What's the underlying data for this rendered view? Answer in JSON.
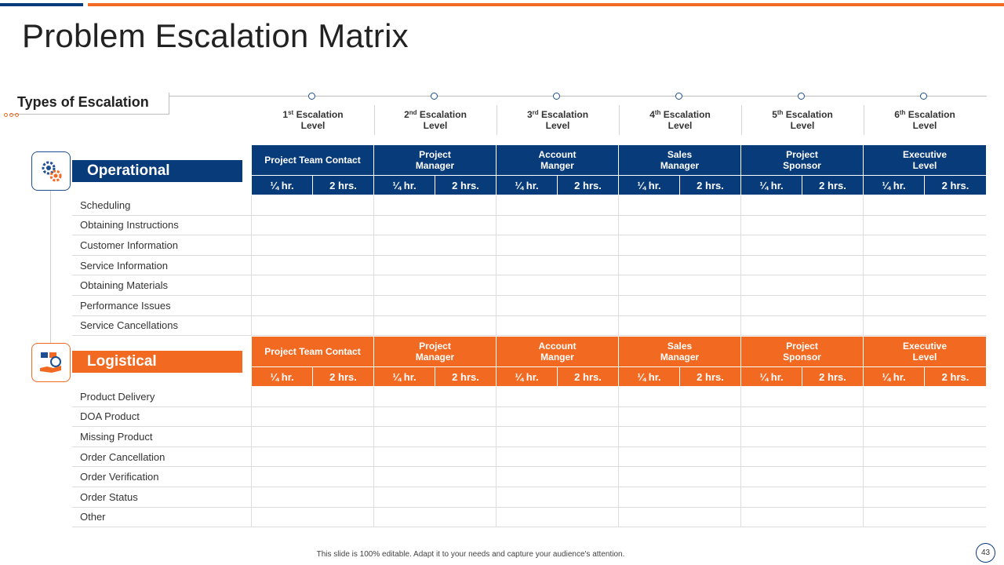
{
  "title": "Problem Escalation Matrix",
  "types_label": "Types of Escalation",
  "levels": [
    {
      "num": "1",
      "sup": "st",
      "line1": "Escalation",
      "line2": "Level"
    },
    {
      "num": "2",
      "sup": "nd",
      "line1": "Escalation",
      "line2": "Level"
    },
    {
      "num": "3",
      "sup": "rd",
      "line1": "Escalation",
      "line2": "Level"
    },
    {
      "num": "4",
      "sup": "th",
      "line1": "Escalation",
      "line2": "Level"
    },
    {
      "num": "5",
      "sup": "th",
      "line1": "Escalation",
      "line2": "Level"
    },
    {
      "num": "6",
      "sup": "th",
      "line1": "Escalation",
      "line2": "Level"
    }
  ],
  "contacts": [
    {
      "line1": "Project Team Contact",
      "line2": ""
    },
    {
      "line1": "Project",
      "line2": "Manager"
    },
    {
      "line1": "Account",
      "line2": "Manger"
    },
    {
      "line1": "Sales",
      "line2": "Manager"
    },
    {
      "line1": "Project",
      "line2": "Sponsor"
    },
    {
      "line1": "Executive",
      "line2": "Level"
    }
  ],
  "time_labels": [
    "¼ hr.",
    "2 hrs."
  ],
  "operational": {
    "label": "Operational",
    "rows": [
      "Scheduling",
      "Obtaining Instructions",
      "Customer Information",
      "Service Information",
      "Obtaining Materials",
      "Performance  Issues",
      "Service Cancellations"
    ]
  },
  "logistical": {
    "label": "Logistical",
    "rows": [
      "Product Delivery",
      "DOA Product",
      "Missing Product",
      "Order Cancellation",
      "Order Verification",
      "Order Status",
      "Other"
    ]
  },
  "footer": "This slide is 100% editable. Adapt it to your needs and capture your audience's attention.",
  "page_number": "43",
  "colors": {
    "blue": "#083b7a",
    "orange": "#f26a22"
  }
}
